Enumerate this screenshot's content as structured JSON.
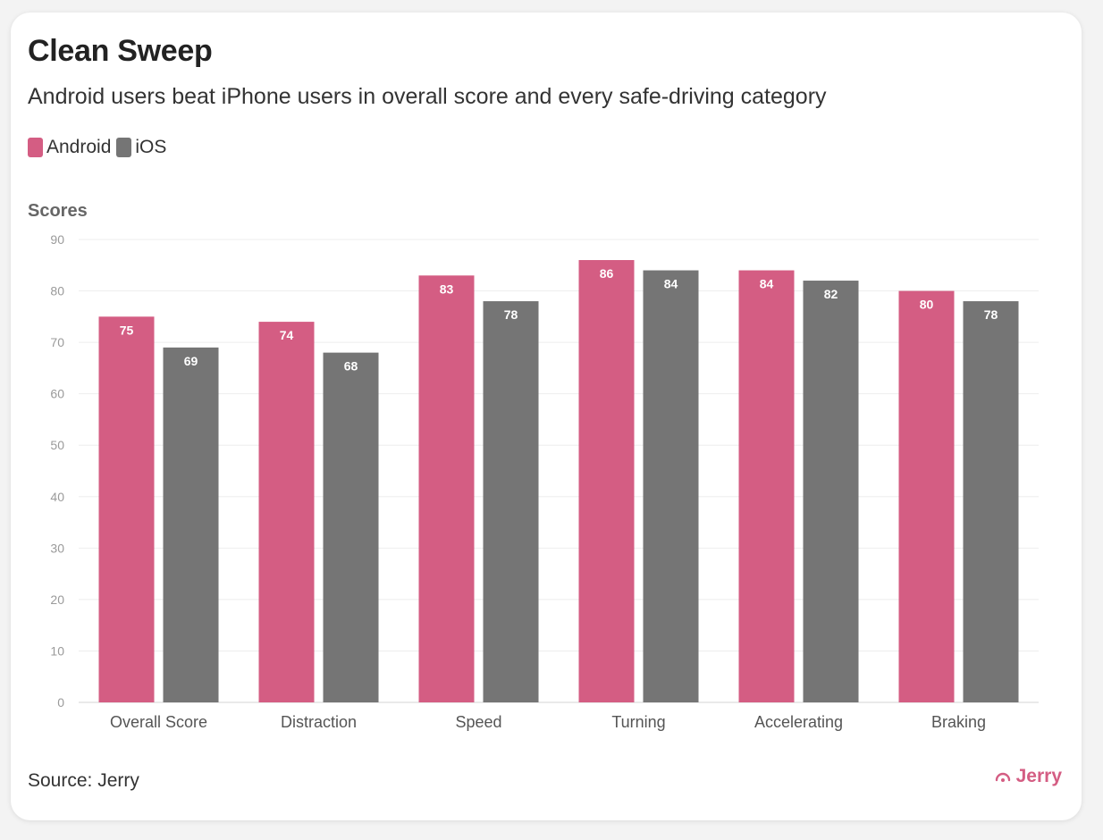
{
  "header": {
    "title": "Clean Sweep",
    "subtitle": "Android users beat iPhone users in overall score and every safe-driving category"
  },
  "legend": [
    {
      "label": "Android",
      "color": "#d45d83"
    },
    {
      "label": "iOS",
      "color": "#757575"
    }
  ],
  "footer": {
    "source": "Source: Jerry",
    "brand": "Jerry",
    "brand_icon": "jerry-logo-icon"
  },
  "chart_data": {
    "type": "bar",
    "title": "Clean Sweep",
    "subtitle": "Android users beat iPhone users in overall score and every safe-driving category",
    "ylabel": "Scores",
    "xlabel": "",
    "categories": [
      "Overall Score",
      "Distraction",
      "Speed",
      "Turning",
      "Accelerating",
      "Braking"
    ],
    "series": [
      {
        "name": "Android",
        "color": "#d45d83",
        "values": [
          75,
          74,
          83,
          86,
          84,
          80
        ]
      },
      {
        "name": "iOS",
        "color": "#757575",
        "values": [
          69,
          68,
          78,
          84,
          82,
          78
        ]
      }
    ],
    "ylim": [
      0,
      90
    ],
    "yticks": [
      0,
      10,
      20,
      30,
      40,
      50,
      60,
      70,
      80,
      90
    ],
    "grid": true,
    "legend_position": "top-left",
    "data_labels": true
  }
}
